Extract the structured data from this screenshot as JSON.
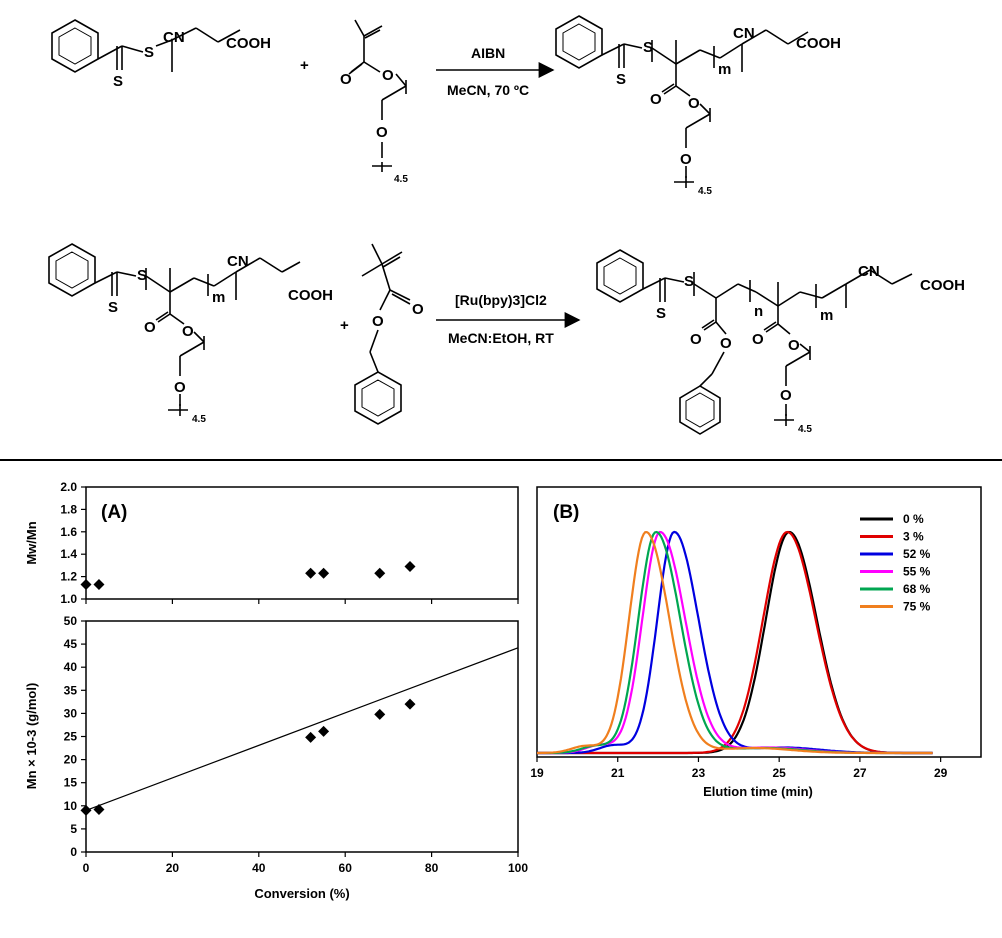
{
  "scheme": {
    "reaction1": {
      "cta_labels": {
        "cn": "CN",
        "s_thio": "S",
        "s_dbl": "S",
        "cooh": "COOH"
      },
      "plus": "+",
      "monomer_labels": {
        "o_ester": "O",
        "o_ring": "O",
        "o_ether": "O",
        "repeat": "4.5"
      },
      "conditions": [
        "AIBN",
        "MeCN, 70 ºC"
      ],
      "product_labels": {
        "s_thio": "S",
        "s_dbl": "S",
        "cn": "CN",
        "cooh": "COOH",
        "m": "m",
        "o_carb": "O",
        "o_ester": "O",
        "o_ether": "O",
        "repeat": "4.5"
      }
    },
    "reaction2": {
      "macro_labels": {
        "s_thio": "S",
        "s_dbl": "S",
        "cn": "CN",
        "cooh": "COOH",
        "m": "m",
        "o_carb": "O",
        "o_ester": "O",
        "o_ether": "O",
        "repeat": "4.5"
      },
      "plus": "+",
      "monomer_labels": {
        "o_carb": "O",
        "o_ester": "O"
      },
      "conditions": [
        "[Ru(bpy)3]Cl2",
        "MeCN:EtOH, RT"
      ],
      "product_labels": {
        "s_thio": "S",
        "s_dbl": "S",
        "n": "n",
        "m": "m",
        "cn": "CN",
        "cooh": "COOH",
        "o_c1": "O",
        "o_e1": "O",
        "o_c2": "O",
        "o_e2": "O",
        "o_ether": "O",
        "repeat": "4.5"
      }
    }
  },
  "chart_data": [
    {
      "panel": "(A)",
      "type": "scatter",
      "ylabel": "Mw/Mn",
      "xlim": [
        0,
        100
      ],
      "ylim": [
        1.0,
        2.0
      ],
      "yticks": [
        "1.0",
        "1.2",
        "1.4",
        "1.6",
        "1.8",
        "2.0"
      ],
      "series": [
        {
          "x": [
            0,
            3,
            52,
            55,
            68,
            75
          ],
          "y": [
            1.13,
            1.13,
            1.23,
            1.23,
            1.23,
            1.29
          ]
        }
      ]
    },
    {
      "panel": "(A)",
      "type": "scatter",
      "xlabel": "Conversion (%)",
      "ylabel": "Mn × 10-3 (g/mol)",
      "xlim": [
        0,
        100
      ],
      "ylim": [
        0,
        50
      ],
      "xticks": [
        "0",
        "20",
        "40",
        "60",
        "80",
        "100"
      ],
      "yticks": [
        "0",
        "5",
        "10",
        "15",
        "20",
        "25",
        "30",
        "35",
        "40",
        "45",
        "50"
      ],
      "series": [
        {
          "x": [
            0,
            3,
            52,
            55,
            68,
            75
          ],
          "y": [
            9.0,
            9.2,
            24.8,
            26.1,
            29.8,
            32.0
          ]
        }
      ],
      "trendline": {
        "x": [
          0,
          100
        ],
        "y": [
          9.0,
          44.2
        ]
      }
    },
    {
      "panel": "(B)",
      "type": "line",
      "xlabel": "Elution time (min)",
      "xlim": [
        19,
        30
      ],
      "xticks": [
        "19",
        "21",
        "23",
        "25",
        "27",
        "29"
      ],
      "legend_position": "top-right",
      "series": [
        {
          "name": "0 %",
          "color": "#000000",
          "peak": 25.25,
          "width_left": 0.58,
          "width_right": 0.68,
          "shoulder": 0
        },
        {
          "name": "3 %",
          "color": "#e00000",
          "peak": 25.2,
          "width_left": 0.6,
          "width_right": 0.7,
          "shoulder": 0
        },
        {
          "name": "52 %",
          "color": "#0000e0",
          "peak": 22.4,
          "width_left": 0.42,
          "width_right": 0.6,
          "shoulder": 0.1
        },
        {
          "name": "55 %",
          "color": "#ff00ff",
          "peak": 22.05,
          "width_left": 0.44,
          "width_right": 0.62,
          "shoulder": 0.1
        },
        {
          "name": "68 %",
          "color": "#00a651",
          "peak": 21.95,
          "width_left": 0.44,
          "width_right": 0.6,
          "shoulder": 0.09
        },
        {
          "name": "75 %",
          "color": "#f07f1e",
          "peak": 21.7,
          "width_left": 0.42,
          "width_right": 0.58,
          "shoulder": 0.09
        }
      ]
    }
  ]
}
